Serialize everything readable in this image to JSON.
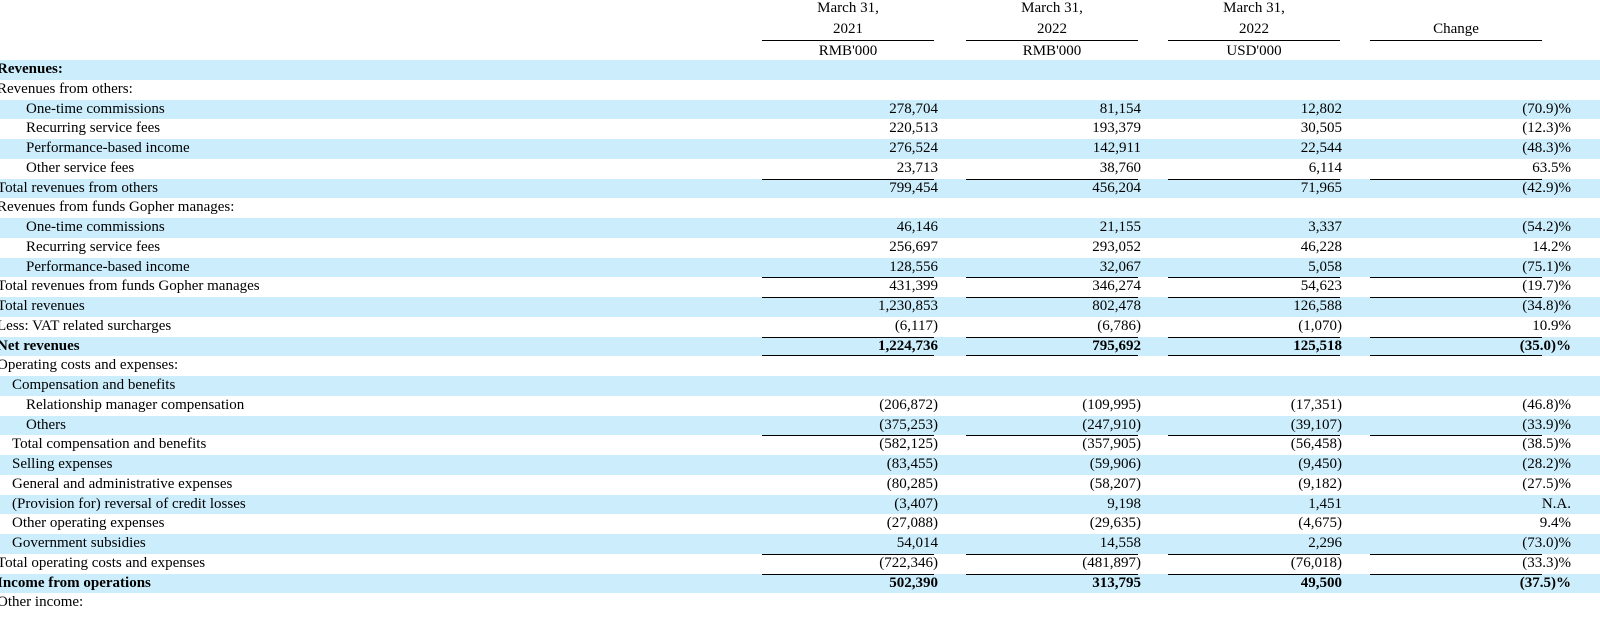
{
  "header": {
    "columns": [
      {
        "line1": "March 31,",
        "line2": "2021",
        "line3": "RMB'000"
      },
      {
        "line1": "March 31,",
        "line2": "2022",
        "line3": "RMB'000"
      },
      {
        "line1": "March 31,",
        "line2": "2022",
        "line3": "USD'000"
      }
    ],
    "change_label": "Change"
  },
  "rows": [
    {
      "label": "Revenues:",
      "indent": 0,
      "bold": true,
      "shade": true,
      "v": [
        "",
        "",
        "",
        ""
      ]
    },
    {
      "label": "Revenues from others:",
      "indent": 0,
      "shade": false,
      "v": [
        "",
        "",
        "",
        ""
      ]
    },
    {
      "label": "One-time commissions",
      "indent": 2,
      "shade": true,
      "v": [
        "278,704",
        "81,154",
        "12,802",
        "(70.9)%"
      ]
    },
    {
      "label": "Recurring service fees",
      "indent": 2,
      "shade": false,
      "v": [
        "220,513",
        "193,379",
        "30,505",
        "(12.3)%"
      ]
    },
    {
      "label": "Performance-based income",
      "indent": 2,
      "shade": true,
      "v": [
        "276,524",
        "142,911",
        "22,544",
        "(48.3)%"
      ]
    },
    {
      "label": "Other service fees",
      "indent": 2,
      "shade": false,
      "v": [
        "23,713",
        "38,760",
        "6,114",
        "63.5%"
      ]
    },
    {
      "label": "Total revenues from others",
      "indent": 0,
      "shade": true,
      "top": true,
      "v": [
        "799,454",
        "456,204",
        "71,965",
        "(42.9)%"
      ]
    },
    {
      "label": "Revenues from funds Gopher manages:",
      "indent": 0,
      "shade": false,
      "v": [
        "",
        "",
        "",
        ""
      ]
    },
    {
      "label": "One-time commissions",
      "indent": 2,
      "shade": true,
      "v": [
        "46,146",
        "21,155",
        "3,337",
        "(54.2)%"
      ]
    },
    {
      "label": "Recurring service fees",
      "indent": 2,
      "shade": false,
      "v": [
        "256,697",
        "293,052",
        "46,228",
        "14.2%"
      ]
    },
    {
      "label": "Performance-based income",
      "indent": 2,
      "shade": true,
      "v": [
        "128,556",
        "32,067",
        "5,058",
        "(75.1)%"
      ]
    },
    {
      "label": "Total revenues from funds Gopher manages",
      "indent": 0,
      "shade": false,
      "top": true,
      "v": [
        "431,399",
        "346,274",
        "54,623",
        "(19.7)%"
      ]
    },
    {
      "label": "Total revenues",
      "indent": 0,
      "shade": true,
      "top": true,
      "v": [
        "1,230,853",
        "802,478",
        "126,588",
        "(34.8)%"
      ]
    },
    {
      "label": "Less: VAT related surcharges",
      "indent": 0,
      "shade": false,
      "v": [
        "(6,117)",
        "(6,786)",
        "(1,070)",
        "10.9%"
      ]
    },
    {
      "label": "Net revenues",
      "indent": 0,
      "bold": true,
      "shade": true,
      "top": true,
      "bottom": true,
      "v": [
        "1,224,736",
        "795,692",
        "125,518",
        "(35.0)%"
      ]
    },
    {
      "label": "Operating costs and expenses:",
      "indent": 0,
      "shade": false,
      "v": [
        "",
        "",
        "",
        ""
      ]
    },
    {
      "label": "Compensation and benefits",
      "indent": 1,
      "shade": true,
      "v": [
        "",
        "",
        "",
        ""
      ]
    },
    {
      "label": "Relationship manager compensation",
      "indent": 2,
      "shade": false,
      "v": [
        "(206,872)",
        "(109,995)",
        "(17,351)",
        "(46.8)%"
      ]
    },
    {
      "label": "Others",
      "indent": 2,
      "shade": true,
      "v": [
        "(375,253)",
        "(247,910)",
        "(39,107)",
        "(33.9)%"
      ]
    },
    {
      "label": "Total compensation and benefits",
      "indent": 1,
      "shade": false,
      "top": true,
      "v": [
        "(582,125)",
        "(357,905)",
        "(56,458)",
        "(38.5)%"
      ]
    },
    {
      "label": "Selling expenses",
      "indent": 1,
      "shade": true,
      "v": [
        "(83,455)",
        "(59,906)",
        "(9,450)",
        "(28.2)%"
      ]
    },
    {
      "label": "General and administrative expenses",
      "indent": 1,
      "shade": false,
      "v": [
        "(80,285)",
        "(58,207)",
        "(9,182)",
        "(27.5)%"
      ]
    },
    {
      "label": "(Provision for) reversal of credit losses",
      "indent": 1,
      "shade": true,
      "v": [
        "(3,407)",
        "9,198",
        "1,451",
        "N.A."
      ]
    },
    {
      "label": "Other operating expenses",
      "indent": 1,
      "shade": false,
      "v": [
        "(27,088)",
        "(29,635)",
        "(4,675)",
        "9.4%"
      ]
    },
    {
      "label": "Government subsidies",
      "indent": 1,
      "shade": true,
      "v": [
        "54,014",
        "14,558",
        "2,296",
        "(73.0)%"
      ]
    },
    {
      "label": "Total operating costs and expenses",
      "indent": 0,
      "shade": false,
      "top": true,
      "v": [
        "(722,346)",
        "(481,897)",
        "(76,018)",
        "(33.3)%"
      ]
    },
    {
      "label": "Income from operations",
      "indent": 0,
      "bold": true,
      "shade": true,
      "top": true,
      "v": [
        "502,390",
        "313,795",
        "49,500",
        "(37.5)%"
      ]
    },
    {
      "label": "Other income:",
      "indent": 0,
      "shade": false,
      "v": [
        "",
        "",
        "",
        ""
      ]
    }
  ]
}
